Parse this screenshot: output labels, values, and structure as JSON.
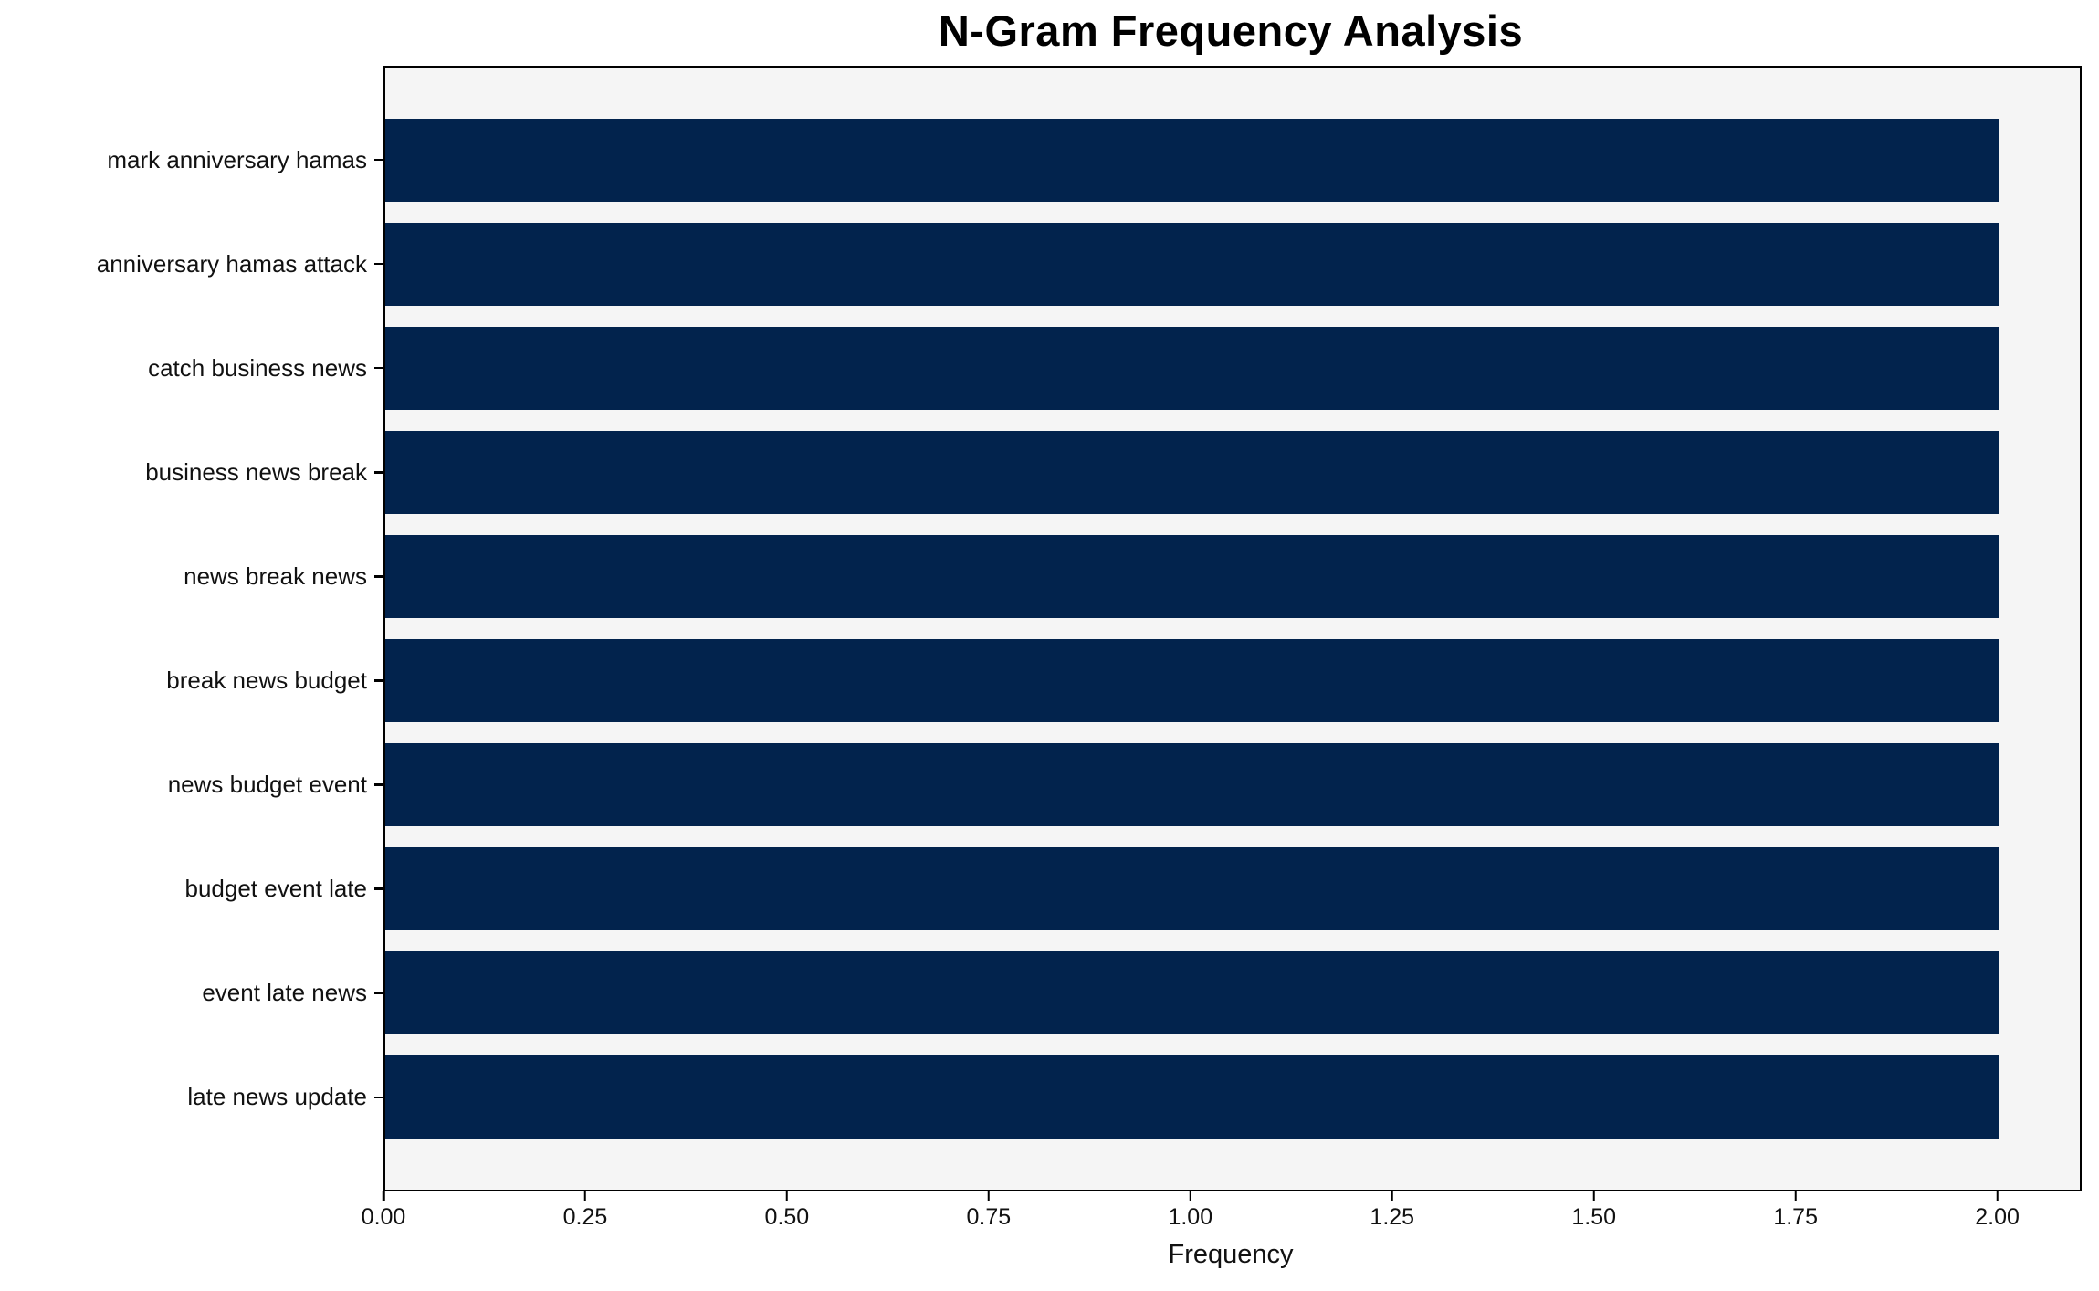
{
  "figure": {
    "background": "#ffffff",
    "plot_border_color": "#000000"
  },
  "chart_data": {
    "type": "bar",
    "orientation": "horizontal",
    "title": "N-Gram Frequency Analysis",
    "xlabel": "Frequency",
    "ylabel": "",
    "categories": [
      "mark anniversary hamas",
      "anniversary hamas attack",
      "catch business news",
      "business news break",
      "news break news",
      "break news budget",
      "news budget event",
      "budget event late",
      "event late news",
      "late news update"
    ],
    "values": [
      2,
      2,
      2,
      2,
      2,
      2,
      2,
      2,
      2,
      2
    ],
    "xlim": [
      0,
      2.1
    ],
    "x_tick_values": [
      0,
      0.25,
      0.5,
      0.75,
      1.0,
      1.25,
      1.5,
      1.75,
      2.0
    ],
    "x_tick_labels": [
      "0.00",
      "0.25",
      "0.50",
      "0.75",
      "1.00",
      "1.25",
      "1.50",
      "1.75",
      "2.00"
    ],
    "bar_color": "#02234d",
    "plot_background": "#f5f5f5",
    "grid": false,
    "legend_position": "none"
  }
}
